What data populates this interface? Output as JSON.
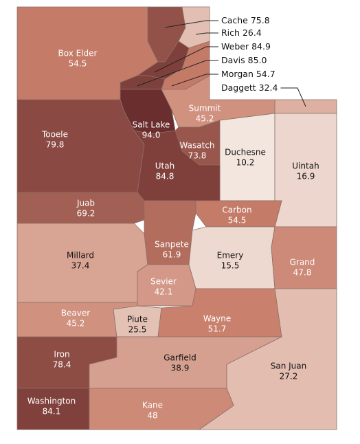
{
  "map": {
    "counties": [
      {
        "name": "Box Elder",
        "value": 54.5
      },
      {
        "name": "Cache",
        "value": 75.8
      },
      {
        "name": "Rich",
        "value": 26.4
      },
      {
        "name": "Weber",
        "value": 84.9
      },
      {
        "name": "Davis",
        "value": 85.0,
        "value_label": "85.0"
      },
      {
        "name": "Morgan",
        "value": 54.7
      },
      {
        "name": "Daggett",
        "value": 32.4
      },
      {
        "name": "Salt Lake",
        "value": 94.0,
        "value_label": "94.0"
      },
      {
        "name": "Summit",
        "value": 45.2
      },
      {
        "name": "Tooele",
        "value": 79.8
      },
      {
        "name": "Wasatch",
        "value": 73.8
      },
      {
        "name": "Duchesne",
        "value": 10.2
      },
      {
        "name": "Uintah",
        "value": 16.9
      },
      {
        "name": "Utah",
        "value": 84.8
      },
      {
        "name": "Juab",
        "value": 69.2
      },
      {
        "name": "Carbon",
        "value": 54.5
      },
      {
        "name": "Millard",
        "value": 37.4
      },
      {
        "name": "Sanpete",
        "value": 61.9
      },
      {
        "name": "Emery",
        "value": 15.5
      },
      {
        "name": "Sevier",
        "value": 42.1
      },
      {
        "name": "Grand",
        "value": 47.8
      },
      {
        "name": "Beaver",
        "value": 45.2
      },
      {
        "name": "Piute",
        "value": 25.5
      },
      {
        "name": "Wayne",
        "value": 51.7
      },
      {
        "name": "Iron",
        "value": 78.4
      },
      {
        "name": "Garfield",
        "value": 38.9
      },
      {
        "name": "San Juan",
        "value": 27.2
      },
      {
        "name": "Washington",
        "value": 84.1
      },
      {
        "name": "Kane",
        "value": 48.0
      }
    ]
  }
}
